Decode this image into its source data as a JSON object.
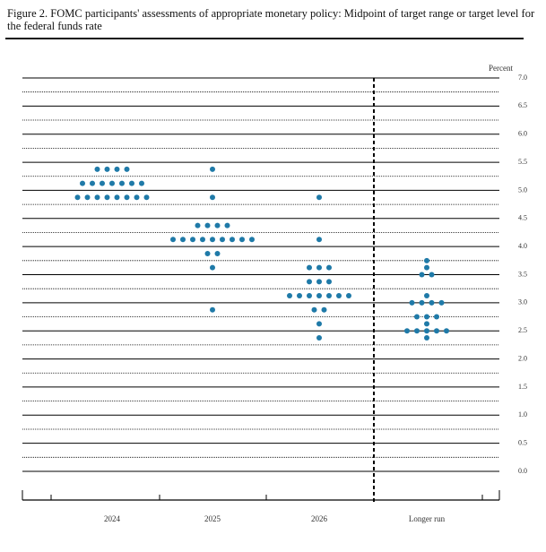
{
  "chart_data": {
    "type": "dot",
    "title": "Figure 2.  FOMC participants' assessments of appropriate monetary policy: Midpoint of target range or target level for the federal funds rate",
    "y_label": "Percent",
    "color": "#1f7aa8",
    "ylim": [
      0,
      7
    ],
    "yticks": [
      {
        "value": 7,
        "label": "7.0"
      },
      {
        "value": 6.5,
        "label": "6.5"
      },
      {
        "value": 6,
        "label": "6.0"
      },
      {
        "value": 5.5,
        "label": "5.5"
      },
      {
        "value": 5,
        "label": "5.0"
      },
      {
        "value": 4.5,
        "label": "4.5"
      },
      {
        "value": 4,
        "label": "4.0"
      },
      {
        "value": 3.5,
        "label": "3.5"
      },
      {
        "value": 3,
        "label": "3.0"
      },
      {
        "value": 2.5,
        "label": "2.5"
      },
      {
        "value": 2,
        "label": "2.0"
      },
      {
        "value": 1.5,
        "label": "1.5"
      },
      {
        "value": 1,
        "label": "1.0"
      },
      {
        "value": 0.5,
        "label": "0.5"
      },
      {
        "value": 0,
        "label": "0.0"
      }
    ],
    "categories": [
      "2024",
      "2025",
      "2026",
      "Longer run"
    ],
    "dots": [
      [
        {
          "rate": 5.375,
          "count": 4
        },
        {
          "rate": 5.125,
          "count": 7
        },
        {
          "rate": 4.875,
          "count": 8
        }
      ],
      [
        {
          "rate": 5.375,
          "count": 1
        },
        {
          "rate": 4.875,
          "count": 1
        },
        {
          "rate": 4.375,
          "count": 4
        },
        {
          "rate": 4.125,
          "count": 9
        },
        {
          "rate": 3.875,
          "count": 2
        },
        {
          "rate": 3.625,
          "count": 1
        },
        {
          "rate": 2.875,
          "count": 1
        }
      ],
      [
        {
          "rate": 4.875,
          "count": 1
        },
        {
          "rate": 4.125,
          "count": 1
        },
        {
          "rate": 3.625,
          "count": 3
        },
        {
          "rate": 3.375,
          "count": 3
        },
        {
          "rate": 3.125,
          "count": 7
        },
        {
          "rate": 2.875,
          "count": 2
        },
        {
          "rate": 2.625,
          "count": 1
        },
        {
          "rate": 2.375,
          "count": 1
        }
      ],
      [
        {
          "rate": 3.75,
          "count": 1
        },
        {
          "rate": 3.625,
          "count": 1
        },
        {
          "rate": 3.5,
          "count": 2
        },
        {
          "rate": 3.125,
          "count": 1
        },
        {
          "rate": 3,
          "count": 4
        },
        {
          "rate": 2.75,
          "count": 3
        },
        {
          "rate": 2.625,
          "count": 1
        },
        {
          "rate": 2.5,
          "count": 5
        },
        {
          "rate": 2.375,
          "count": 1
        }
      ]
    ]
  }
}
